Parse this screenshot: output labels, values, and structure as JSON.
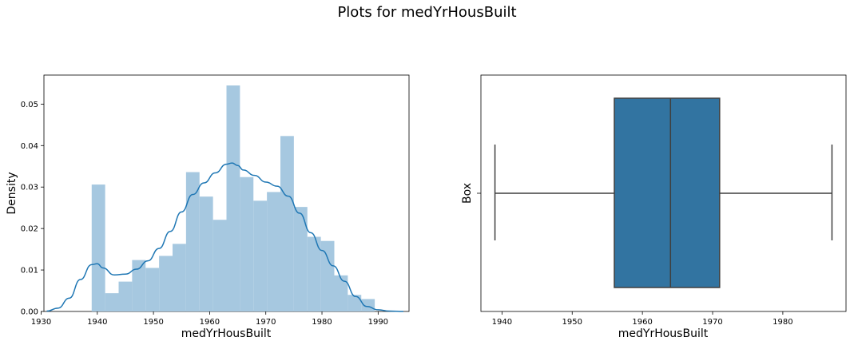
{
  "figure": {
    "title": "Plots for medYrHousBuilt"
  },
  "chart_data": [
    {
      "type": "histogram+kde",
      "xlabel": "medYrHousBuilt",
      "ylabel": "Density",
      "xlim": [
        1930.5,
        1995.5
      ],
      "ylim": [
        0,
        0.057
      ],
      "xticks": [
        1930,
        1940,
        1950,
        1960,
        1970,
        1980,
        1990
      ],
      "yticks": [
        0.0,
        0.01,
        0.02,
        0.03,
        0.04,
        0.05
      ],
      "ytick_labels": [
        "0.00",
        "0.01",
        "0.02",
        "0.03",
        "0.04",
        "0.05"
      ],
      "bar_color": "#a6c8e0",
      "line_color": "#1f77b4",
      "bins": [
        {
          "x0": 1939.0,
          "x1": 1941.4,
          "density": 0.0306
        },
        {
          "x0": 1941.4,
          "x1": 1943.8,
          "density": 0.0044
        },
        {
          "x0": 1943.8,
          "x1": 1946.2,
          "density": 0.0072
        },
        {
          "x0": 1946.2,
          "x1": 1948.6,
          "density": 0.0124
        },
        {
          "x0": 1948.6,
          "x1": 1951.0,
          "density": 0.0105
        },
        {
          "x0": 1951.0,
          "x1": 1953.4,
          "density": 0.0134
        },
        {
          "x0": 1953.4,
          "x1": 1955.8,
          "density": 0.0163
        },
        {
          "x0": 1955.8,
          "x1": 1958.2,
          "density": 0.0336
        },
        {
          "x0": 1958.2,
          "x1": 1960.6,
          "density": 0.0277
        },
        {
          "x0": 1960.6,
          "x1": 1963.0,
          "density": 0.0221
        },
        {
          "x0": 1963.0,
          "x1": 1965.4,
          "density": 0.0545
        },
        {
          "x0": 1965.4,
          "x1": 1967.8,
          "density": 0.0324
        },
        {
          "x0": 1967.8,
          "x1": 1970.2,
          "density": 0.0267
        },
        {
          "x0": 1970.2,
          "x1": 1972.6,
          "density": 0.0288
        },
        {
          "x0": 1972.6,
          "x1": 1975.0,
          "density": 0.0423
        },
        {
          "x0": 1975.0,
          "x1": 1977.4,
          "density": 0.0252
        },
        {
          "x0": 1977.4,
          "x1": 1979.8,
          "density": 0.018
        },
        {
          "x0": 1979.8,
          "x1": 1982.2,
          "density": 0.017
        },
        {
          "x0": 1982.2,
          "x1": 1984.6,
          "density": 0.0087
        },
        {
          "x0": 1984.6,
          "x1": 1987.0,
          "density": 0.004
        },
        {
          "x0": 1987.0,
          "x1": 1989.4,
          "density": 0.003
        }
      ],
      "kde": {
        "x": [
          1931,
          1933,
          1935,
          1937,
          1939,
          1940,
          1941,
          1943,
          1945,
          1947,
          1949,
          1951,
          1953,
          1955,
          1957,
          1959,
          1961,
          1963,
          1964,
          1965,
          1966,
          1968,
          1970,
          1972,
          1974,
          1976,
          1978,
          1980,
          1982,
          1984,
          1986,
          1988,
          1990,
          1992,
          1994.5
        ],
        "y": [
          0.0001,
          0.0008,
          0.0032,
          0.0077,
          0.0113,
          0.0115,
          0.0105,
          0.0088,
          0.009,
          0.0102,
          0.0122,
          0.0152,
          0.0193,
          0.024,
          0.0282,
          0.031,
          0.0334,
          0.0355,
          0.0358,
          0.0352,
          0.0341,
          0.0328,
          0.0312,
          0.0302,
          0.0278,
          0.0237,
          0.019,
          0.0147,
          0.011,
          0.0073,
          0.0036,
          0.0012,
          0.0004,
          0.0001,
          0.0
        ]
      }
    },
    {
      "type": "box",
      "xlabel": "medYrHousBuilt",
      "ylabel": "Box",
      "xlim": [
        1937.0,
        1989.0
      ],
      "xticks": [
        1940,
        1950,
        1960,
        1970,
        1980
      ],
      "box_color": "#3274a1",
      "edge_color": "#3f3f3f",
      "whisker_low": 1939,
      "q1": 1956,
      "median": 1964,
      "q3": 1971,
      "whisker_high": 1987
    }
  ]
}
